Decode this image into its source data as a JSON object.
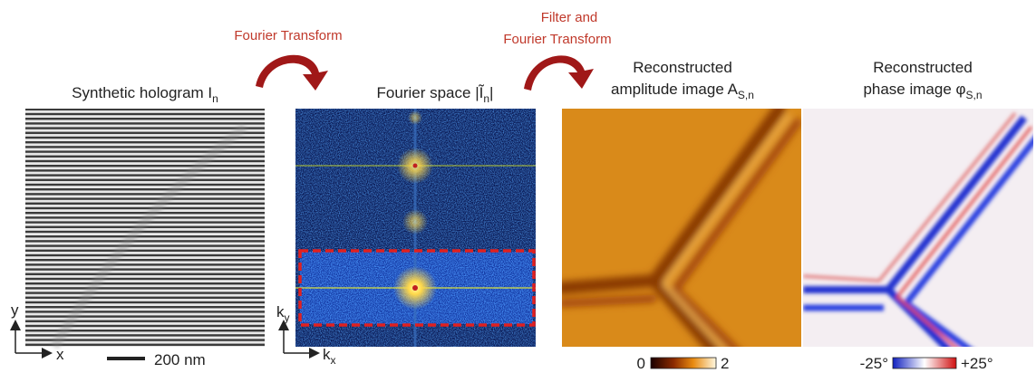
{
  "arrows": {
    "first": "Fourier Transform",
    "second": [
      "Filter and",
      "Fourier Transform"
    ]
  },
  "panels": [
    {
      "title": [
        "Synthetic hologram I",
        "n"
      ],
      "axes": {
        "y": "y",
        "x": "x"
      },
      "scale_bar": "200 nm"
    },
    {
      "title": [
        "Fourier space  |",
        "Ĩ",
        "n",
        "|"
      ],
      "axes": {
        "y": [
          "k",
          "y"
        ],
        "x": [
          "k",
          "x"
        ]
      }
    },
    {
      "title": [
        "Reconstructed",
        "amplitude image A",
        "S,n"
      ],
      "colorbar": {
        "min": "0",
        "max": "2"
      }
    },
    {
      "title": [
        "Reconstructed",
        "phase image φ",
        "S,n"
      ],
      "colorbar": {
        "min": "-25°",
        "max": "+25°"
      }
    }
  ]
}
